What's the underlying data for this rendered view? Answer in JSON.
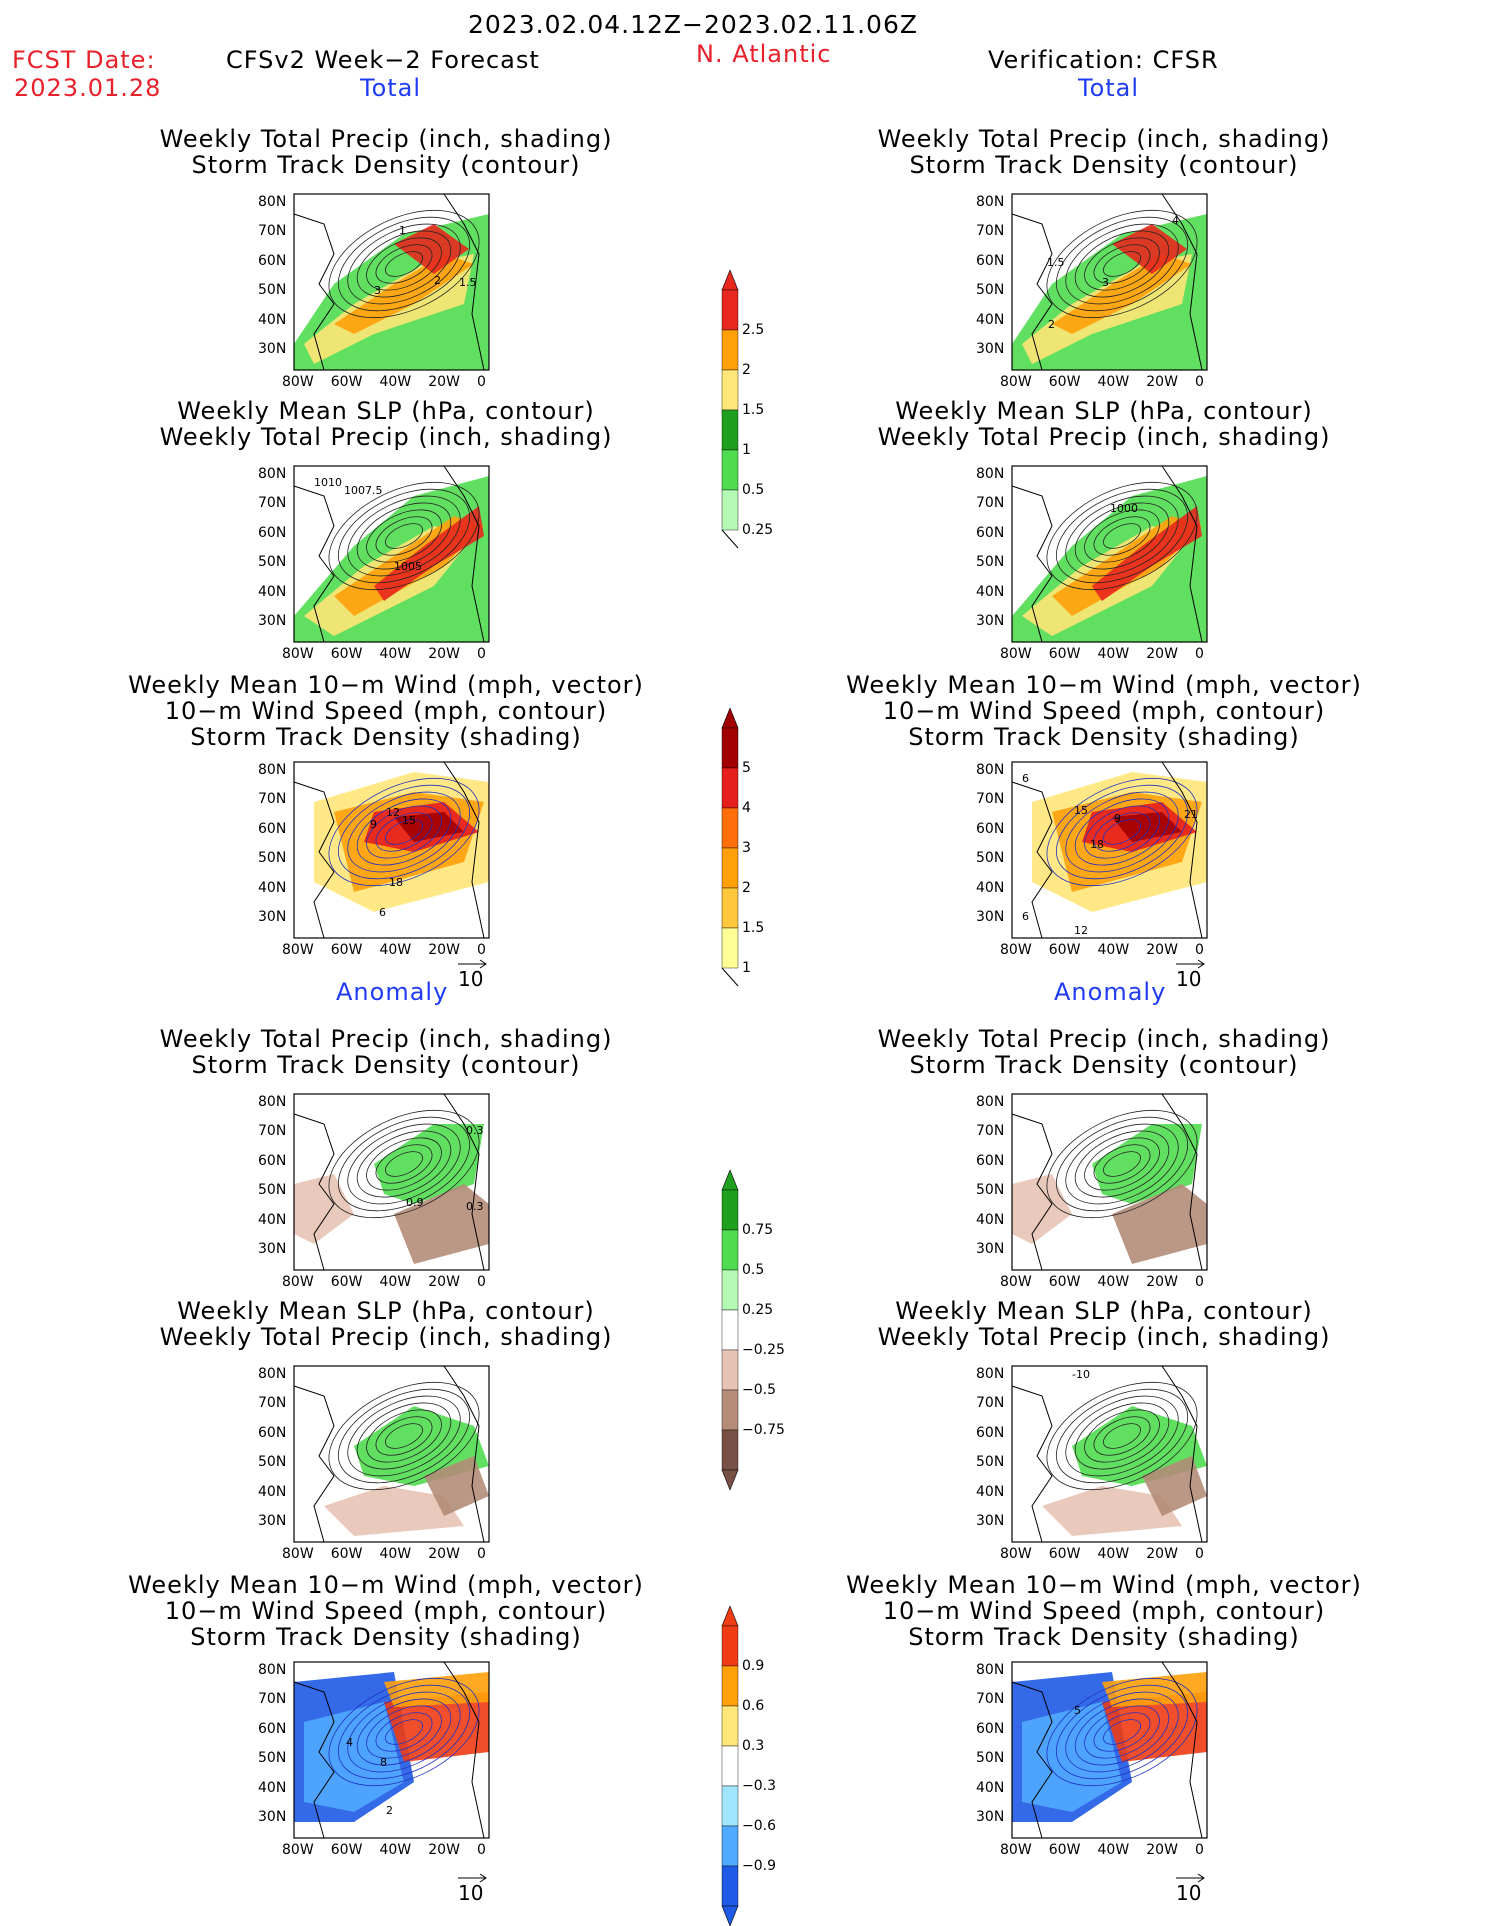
{
  "header": {
    "period": "2023.02.04.12Z−2023.02.11.06Z",
    "fcst_label": "FCST Date:",
    "fcst_date": "2023.01.28",
    "model": "CFSv2 Week−2 Forecast",
    "region": "N. Atlantic",
    "verification": "Verification: CFSR"
  },
  "sections": {
    "total": "Total",
    "anomaly": "Anomaly"
  },
  "panel_titles": {
    "precip_storm": [
      "Weekly Total Precip (inch, shading)",
      "Storm Track Density (contour)"
    ],
    "slp_precip": [
      "Weekly Mean SLP (hPa, contour)",
      "Weekly Total Precip (inch, shading)"
    ],
    "wind_storm": [
      "Weekly Mean 10−m Wind (mph, vector)",
      "10−m Wind Speed (mph, contour)",
      "Storm Track Density (shading)"
    ]
  },
  "axes": {
    "lat_ticks": [
      "80N",
      "70N",
      "60N",
      "50N",
      "40N",
      "30N"
    ],
    "lon_ticks": [
      "80W",
      "60W",
      "40W",
      "20W",
      "0"
    ]
  },
  "vector_ref": "10",
  "colorbars": {
    "precip_total": {
      "labels": [
        "2.5",
        "2",
        "1.5",
        "1",
        "0.5",
        "0.25"
      ],
      "colors": [
        "#e8281e",
        "#ffa00a",
        "#ffe678",
        "#1ea01e",
        "#50dc50",
        "#b4fab4"
      ]
    },
    "storm_total": {
      "labels": [
        "5",
        "4",
        "3",
        "2",
        "1.5",
        "1"
      ],
      "colors": [
        "#a00000",
        "#e61e1e",
        "#ff6e0a",
        "#ffa00a",
        "#ffc83c",
        "#ffff96"
      ]
    },
    "precip_anom": {
      "labels": [
        "0.75",
        "0.5",
        "0.25",
        "−0.25",
        "−0.5",
        "−0.75"
      ],
      "colors": [
        "#1ea01e",
        "#50dc50",
        "#b4fab4",
        "#ffffff",
        "#e6c3b4",
        "#b48c78",
        "#785046"
      ]
    },
    "storm_anom": {
      "labels": [
        "0.9",
        "0.6",
        "0.3",
        "−0.3",
        "−0.6",
        "−0.9"
      ],
      "colors": [
        "#f03c14",
        "#ffa00a",
        "#ffe678",
        "#ffffff",
        "#a0e6ff",
        "#50aaff",
        "#1e5ae6"
      ]
    }
  },
  "map_labels": {
    "l1": [
      "1",
      "2",
      "3",
      "1.5"
    ],
    "r1": [
      "4",
      "1.5",
      "3",
      "2"
    ],
    "l2": [
      "1010",
      "1007.5",
      "1005"
    ],
    "r2": [
      "1000"
    ],
    "l3": [
      "12",
      "15",
      "9",
      "18",
      "6"
    ],
    "r3": [
      "6",
      "15",
      "9",
      "21",
      "18",
      "6",
      "12"
    ],
    "l4": [
      "0.3",
      "0.9",
      "0.3"
    ],
    "r5": [
      "-10"
    ],
    "l6": [
      "4",
      "8",
      "2"
    ],
    "r6": [
      "5"
    ]
  }
}
